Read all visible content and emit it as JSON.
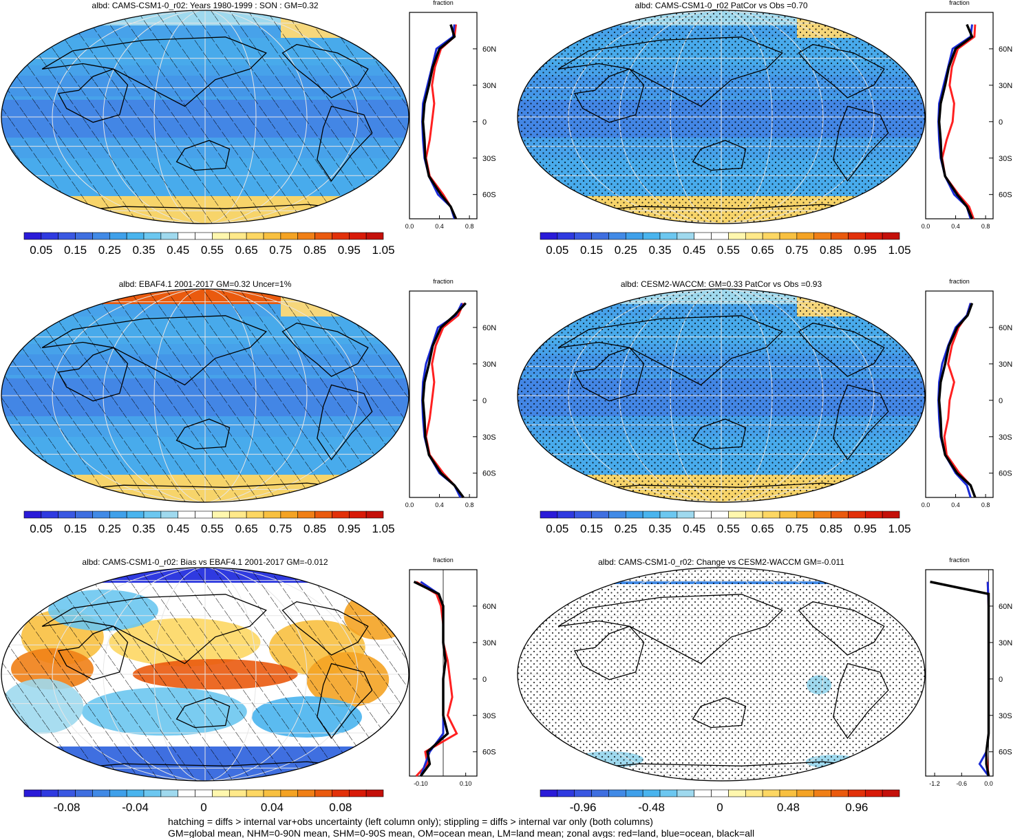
{
  "colors": {
    "scale": [
      "#2a1bd8",
      "#2f3ae0",
      "#3a58e2",
      "#3f6fe0",
      "#418ae6",
      "#3fa0ea",
      "#49b4ee",
      "#6cc7f0",
      "#9fd9ee",
      "#ffffff",
      "#ffffff",
      "#fff7ae",
      "#ffe98a",
      "#fdd763",
      "#f8c040",
      "#f4a324",
      "#f07f16",
      "#ea5a0e",
      "#e2310a",
      "#d81a08",
      "#c4100a"
    ],
    "land_line": "#ff2020",
    "ocean_line": "#1a2bd6",
    "all_line": "#000000",
    "map_base": "#47a2ea",
    "arctic_high": "#f6d77b",
    "antarctic": "#f7d46a"
  },
  "panels": [
    {
      "title": "albd: CAMS-CSM1-0_r02: Years 1980-1999 : SON : GM=0.32",
      "hatched": true,
      "stippled": false,
      "kind": "abs",
      "colorbar_labels": [
        "0.05",
        "0.15",
        "0.25",
        "0.35",
        "0.45",
        "0.55",
        "0.65",
        "0.75",
        "0.85",
        "0.95",
        "1.05"
      ],
      "profile_label": "fraction",
      "profile_x_ticks": [
        "0.0",
        "0.4",
        "0.8"
      ],
      "lat_ticks": [
        "60N",
        "30N",
        "0",
        "30S",
        "60S"
      ]
    },
    {
      "title": "albd: CAMS-CSM1-0_r02 PatCor vs Obs =0.70",
      "hatched": false,
      "stippled": true,
      "kind": "abs",
      "colorbar_labels": [
        "0.05",
        "0.15",
        "0.25",
        "0.35",
        "0.45",
        "0.55",
        "0.65",
        "0.75",
        "0.85",
        "0.95",
        "1.05"
      ],
      "profile_label": "fraction",
      "profile_x_ticks": [
        "0.0",
        "0.4",
        "0.8"
      ],
      "lat_ticks": [
        "60N",
        "30N",
        "0",
        "30S",
        "60S"
      ]
    },
    {
      "title": "albd: EBAF4.1 2001-2017 GM=0.32 Uncer=1%",
      "hatched": true,
      "stippled": false,
      "kind": "abs",
      "colorbar_labels": [
        "0.05",
        "0.15",
        "0.25",
        "0.35",
        "0.45",
        "0.55",
        "0.65",
        "0.75",
        "0.85",
        "0.95",
        "1.05"
      ],
      "profile_label": "fraction",
      "profile_x_ticks": [
        "0.0",
        "0.4",
        "0.8"
      ],
      "lat_ticks": [
        "60N",
        "30N",
        "0",
        "30S",
        "60S"
      ]
    },
    {
      "title": "albd: CESM2-WACCM: GM=0.33 PatCor vs Obs =0.93",
      "hatched": false,
      "stippled": true,
      "kind": "abs",
      "colorbar_labels": [
        "0.05",
        "0.15",
        "0.25",
        "0.35",
        "0.45",
        "0.55",
        "0.65",
        "0.75",
        "0.85",
        "0.95",
        "1.05"
      ],
      "profile_label": "fraction",
      "profile_x_ticks": [
        "0.0",
        "0.4",
        "0.8"
      ],
      "lat_ticks": [
        "60N",
        "30N",
        "0",
        "30S",
        "60S"
      ]
    },
    {
      "title": "albd: CAMS-CSM1-0_r02: Bias vs EBAF4.1 2001-2017  GM=-0.012",
      "hatched": true,
      "stippled": false,
      "kind": "bias",
      "colorbar_labels": [
        "-0.08",
        "-0.04",
        "0",
        "0.04",
        "0.08"
      ],
      "profile_label": "fraction",
      "profile_x_ticks": [
        "-0.10",
        "0.10"
      ],
      "lat_ticks": [
        "60N",
        "30N",
        "0",
        "30S",
        "60S"
      ]
    },
    {
      "title": "albd: CAMS-CSM1-0_r02: Change vs CESM2-WACCM GM=-0.011",
      "hatched": false,
      "stippled": true,
      "kind": "change",
      "colorbar_labels": [
        "-0.96",
        "-0.48",
        "0",
        "0.48",
        "0.96"
      ],
      "profile_label": "fraction",
      "profile_x_ticks": [
        "-1.2",
        "-0.6",
        "0.0"
      ],
      "lat_ticks": [
        "60N",
        "30N",
        "0",
        "30S",
        "60S"
      ]
    }
  ],
  "footer": {
    "line1": "hatching = diffs > internal var+obs uncertainty (left column only); stippling = diffs > internal var only (both columns)",
    "line2": "GM=global mean, NHM=0-90N mean, SHM=0-90S mean, OM=ocean mean, LM=land mean; zonal avgs: red=land, blue=ocean, black=all"
  },
  "chart_data": [
    {
      "type": "heatmap",
      "title": "albd: CAMS-CSM1-0_r02: Years 1980-1999 : SON : GM=0.32",
      "colorbar": {
        "min": 0.0,
        "max": 1.1,
        "labels": [
          "0.05",
          "0.15",
          "0.25",
          "0.35",
          "0.45",
          "0.55",
          "0.65",
          "0.75",
          "0.85",
          "0.95",
          "1.05"
        ]
      },
      "zonal_profile": {
        "xlabel": "fraction",
        "xlim": [
          0.0,
          0.9
        ],
        "lat": [
          80,
          70,
          60,
          45,
          30,
          15,
          0,
          -15,
          -30,
          -45,
          -60,
          -70,
          -80
        ],
        "series": [
          {
            "name": "land",
            "values": [
              0.62,
              0.6,
              0.42,
              0.34,
              0.3,
              0.33,
              0.3,
              0.27,
              0.22,
              0.27,
              0.45,
              0.55,
              0.62
            ]
          },
          {
            "name": "ocean",
            "values": [
              0.6,
              0.58,
              0.36,
              0.3,
              0.24,
              0.18,
              0.17,
              0.18,
              0.2,
              0.26,
              0.38,
              0.55,
              0.6
            ]
          },
          {
            "name": "all",
            "values": [
              0.55,
              0.6,
              0.4,
              0.31,
              0.26,
              0.2,
              0.18,
              0.2,
              0.21,
              0.26,
              0.42,
              0.55,
              0.62
            ]
          }
        ]
      }
    },
    {
      "type": "heatmap",
      "title": "albd: CAMS-CSM1-0_r02 PatCor vs Obs =0.70",
      "colorbar": {
        "min": 0.0,
        "max": 1.1,
        "labels": [
          "0.05",
          "0.15",
          "0.25",
          "0.35",
          "0.45",
          "0.55",
          "0.65",
          "0.75",
          "0.85",
          "0.95",
          "1.05"
        ]
      },
      "zonal_profile": {
        "xlabel": "fraction",
        "xlim": [
          0.0,
          0.9
        ],
        "lat": [
          80,
          70,
          60,
          45,
          30,
          15,
          0,
          -15,
          -30,
          -45,
          -60,
          -70,
          -80
        ],
        "series": [
          {
            "name": "land",
            "values": [
              0.66,
              0.65,
              0.43,
              0.35,
              0.32,
              0.38,
              0.36,
              0.28,
              0.22,
              0.26,
              0.44,
              0.58,
              0.64
            ]
          },
          {
            "name": "ocean",
            "values": [
              0.62,
              0.6,
              0.36,
              0.3,
              0.24,
              0.18,
              0.17,
              0.18,
              0.2,
              0.26,
              0.38,
              0.55,
              0.6
            ]
          },
          {
            "name": "all",
            "values": [
              0.55,
              0.62,
              0.4,
              0.31,
              0.26,
              0.2,
              0.18,
              0.2,
              0.21,
              0.26,
              0.42,
              0.55,
              0.62
            ]
          }
        ]
      }
    },
    {
      "type": "heatmap",
      "title": "albd: EBAF4.1 2001-2017 GM=0.32 Uncer=1%",
      "colorbar": {
        "min": 0.0,
        "max": 1.1,
        "labels": [
          "0.05",
          "0.15",
          "0.25",
          "0.35",
          "0.45",
          "0.55",
          "0.65",
          "0.75",
          "0.85",
          "0.95",
          "1.05"
        ]
      },
      "zonal_profile": {
        "xlabel": "fraction",
        "xlim": [
          0.0,
          0.9
        ],
        "lat": [
          80,
          70,
          60,
          45,
          30,
          15,
          0,
          -15,
          -30,
          -45,
          -60,
          -70,
          -80
        ],
        "series": [
          {
            "name": "land",
            "values": [
              0.72,
              0.65,
              0.45,
              0.35,
              0.3,
              0.33,
              0.3,
              0.27,
              0.22,
              0.27,
              0.45,
              0.6,
              0.72
            ]
          },
          {
            "name": "ocean",
            "values": [
              0.7,
              0.62,
              0.38,
              0.3,
              0.22,
              0.18,
              0.17,
              0.18,
              0.2,
              0.26,
              0.4,
              0.6,
              0.68
            ]
          },
          {
            "name": "all",
            "values": [
              0.75,
              0.6,
              0.42,
              0.31,
              0.26,
              0.2,
              0.18,
              0.2,
              0.21,
              0.26,
              0.42,
              0.6,
              0.72
            ]
          }
        ]
      }
    },
    {
      "type": "heatmap",
      "title": "albd: CESM2-WACCM: GM=0.33 PatCor vs Obs =0.93",
      "colorbar": {
        "min": 0.0,
        "max": 1.1,
        "labels": [
          "0.05",
          "0.15",
          "0.25",
          "0.35",
          "0.45",
          "0.55",
          "0.65",
          "0.75",
          "0.85",
          "0.95",
          "1.05"
        ]
      },
      "zonal_profile": {
        "xlabel": "fraction",
        "xlim": [
          0.0,
          0.9
        ],
        "lat": [
          80,
          70,
          60,
          45,
          30,
          15,
          0,
          -15,
          -30,
          -45,
          -60,
          -70,
          -80
        ],
        "series": [
          {
            "name": "land",
            "values": [
              0.6,
              0.55,
              0.44,
              0.35,
              0.3,
              0.38,
              0.32,
              0.3,
              0.25,
              0.28,
              0.45,
              0.6,
              0.66
            ]
          },
          {
            "name": "ocean",
            "values": [
              0.6,
              0.55,
              0.4,
              0.3,
              0.22,
              0.18,
              0.17,
              0.18,
              0.2,
              0.26,
              0.4,
              0.55,
              0.6
            ]
          },
          {
            "name": "all",
            "values": [
              0.62,
              0.56,
              0.42,
              0.31,
              0.26,
              0.2,
              0.18,
              0.2,
              0.21,
              0.26,
              0.42,
              0.6,
              0.66
            ]
          }
        ]
      }
    },
    {
      "type": "heatmap",
      "title": "albd: CAMS-CSM1-0_r02: Bias vs EBAF4.1 2001-2017  GM=-0.012",
      "colorbar": {
        "min": -0.1,
        "max": 0.1,
        "labels": [
          "-0.08",
          "-0.04",
          "0",
          "0.04",
          "0.08"
        ]
      },
      "zonal_profile": {
        "xlabel": "fraction",
        "xlim": [
          -0.15,
          0.15
        ],
        "lat": [
          80,
          70,
          60,
          45,
          30,
          15,
          0,
          -15,
          -30,
          -45,
          -60,
          -70,
          -80
        ],
        "series": [
          {
            "name": "land",
            "values": [
              -0.12,
              -0.03,
              -0.01,
              0.0,
              0.0,
              0.02,
              0.03,
              0.04,
              0.02,
              0.06,
              -0.08,
              -0.07,
              -0.12
            ]
          },
          {
            "name": "ocean",
            "values": [
              -0.1,
              -0.02,
              0.0,
              0.0,
              0.0,
              0.01,
              0.0,
              0.0,
              0.0,
              0.0,
              -0.06,
              -0.08,
              -0.1
            ]
          },
          {
            "name": "all",
            "values": [
              -0.13,
              -0.02,
              0.0,
              0.0,
              0.0,
              0.01,
              0.0,
              0.0,
              0.0,
              0.02,
              -0.07,
              -0.06,
              -0.1
            ]
          }
        ]
      }
    },
    {
      "type": "heatmap",
      "title": "albd: CAMS-CSM1-0_r02: Change vs CESM2-WACCM GM=-0.011",
      "colorbar": {
        "min": -1.2,
        "max": 1.2,
        "labels": [
          "-0.96",
          "-0.48",
          "0",
          "0.48",
          "0.96"
        ]
      },
      "zonal_profile": {
        "xlabel": "fraction",
        "xlim": [
          -1.4,
          0.1
        ],
        "lat": [
          80,
          70,
          60,
          45,
          30,
          15,
          0,
          -15,
          -30,
          -45,
          -60,
          -70,
          -80
        ],
        "series": [
          {
            "name": "land",
            "values": [
              -0.02,
              -0.01,
              0.0,
              0.0,
              0.0,
              0.0,
              0.0,
              0.0,
              0.0,
              0.0,
              -0.05,
              -0.03,
              0.0
            ]
          },
          {
            "name": "ocean",
            "values": [
              -0.02,
              -0.01,
              0.0,
              0.0,
              0.0,
              0.0,
              0.0,
              0.0,
              0.0,
              0.0,
              -0.05,
              -0.2,
              0.0
            ]
          },
          {
            "name": "all",
            "values": [
              -1.3,
              0.0,
              0.0,
              0.0,
              0.0,
              0.0,
              0.0,
              0.0,
              0.0,
              0.0,
              -0.05,
              -0.05,
              0.0
            ]
          }
        ]
      }
    }
  ]
}
